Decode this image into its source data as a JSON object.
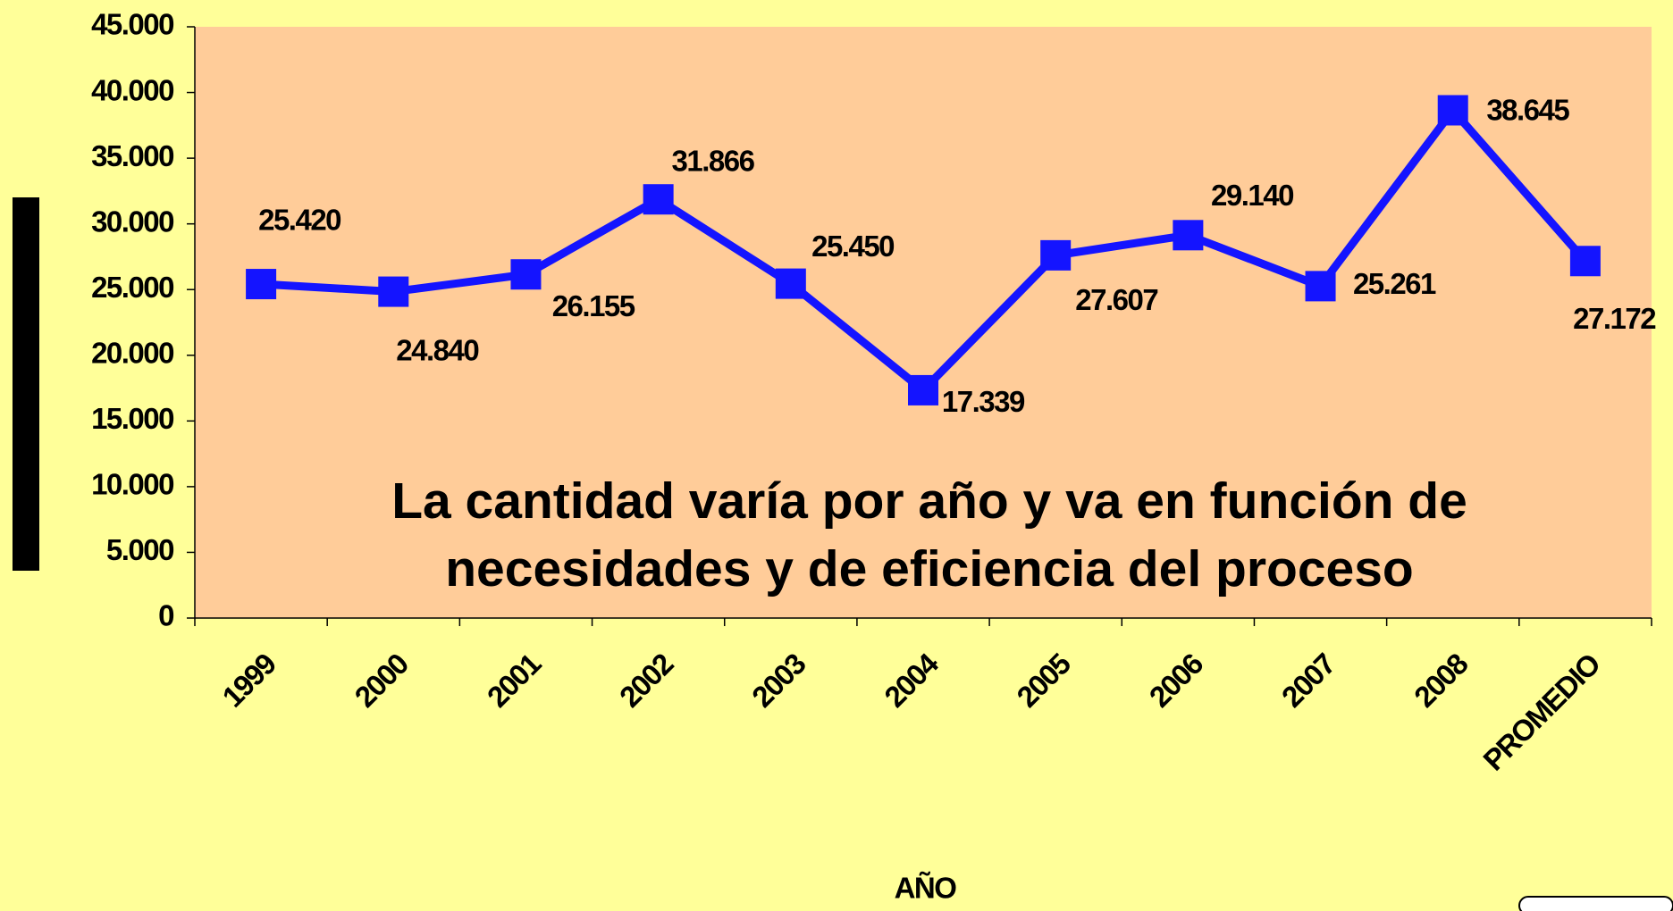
{
  "chart_data": {
    "type": "line",
    "annotation": [
      "La cantidad varía por año y va en función de",
      "necesidades y de eficiencia del proceso"
    ],
    "x_label": "AÑO",
    "categories": [
      "1999",
      "2000",
      "2001",
      "2002",
      "2003",
      "2004",
      "2005",
      "2006",
      "2007",
      "2008",
      "PROMEDIO"
    ],
    "series": [
      {
        "color": "#1414ff",
        "values": [
          25420,
          24840,
          26155,
          31866,
          25450,
          17339,
          27607,
          29140,
          25261,
          38645,
          27172
        ],
        "value_labels": [
          "25.420",
          "24.840",
          "26.155",
          "31.866",
          "25.450",
          "17.339",
          "27.607",
          "29.140",
          "25.261",
          "38.645",
          "27.172"
        ]
      }
    ],
    "ylim": [
      0,
      45000
    ],
    "yticks": [
      0,
      {
        "value": 5000,
        "label": "5.000"
      },
      {
        "value": 10000,
        "label": "10.000"
      },
      {
        "value": 15000,
        "label": "15.000"
      },
      {
        "value": 20000,
        "label": "20.000"
      },
      {
        "value": 25000,
        "label": "25.000"
      },
      {
        "value": 30000,
        "label": "30.000"
      },
      {
        "value": 35000,
        "label": "35.000"
      },
      {
        "value": 40000,
        "label": "40.000"
      },
      {
        "value": 45000,
        "label": "45.000"
      }
    ]
  }
}
